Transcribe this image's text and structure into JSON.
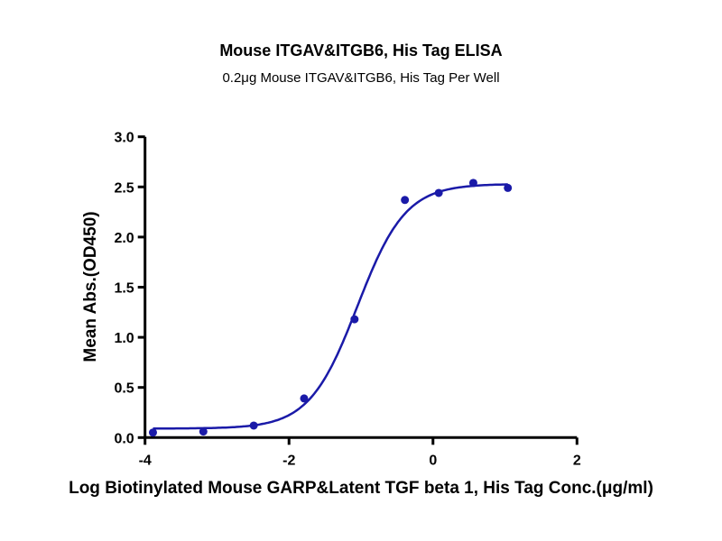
{
  "chart_data": {
    "type": "scatter",
    "title": "Mouse ITGAV&ITGB6, His Tag ELISA",
    "subtitle": "0.2μg Mouse ITGAV&ITGB6, His Tag Per Well",
    "xlabel": "Log Biotinylated Mouse GARP&Latent TGF beta 1, His Tag Conc.(μg/ml)",
    "ylabel": "Mean Abs.(OD450)",
    "xlim": [
      -4,
      2
    ],
    "ylim": [
      0,
      3.0
    ],
    "xticks": [
      "-4",
      "-2",
      "0",
      "2"
    ],
    "xtick_values": [
      -4,
      -2,
      0,
      2
    ],
    "yticks": [
      "0.0",
      "0.5",
      "1.0",
      "1.5",
      "2.0",
      "2.5",
      "3.0"
    ],
    "ytick_values": [
      0,
      0.5,
      1.0,
      1.5,
      2.0,
      2.5,
      3.0
    ],
    "grid": false,
    "color": "#1a1aa8",
    "points": {
      "x": [
        -3.89,
        -3.19,
        -2.49,
        -1.79,
        -1.09,
        -0.39,
        0.08,
        0.56,
        1.04
      ],
      "y": [
        0.05,
        0.06,
        0.12,
        0.39,
        1.18,
        2.37,
        2.44,
        2.54,
        2.49
      ]
    },
    "fit": {
      "model": "4PL",
      "bottom": 0.09,
      "top": 2.53,
      "logEC50": -1.05,
      "hill_slope": 1.3,
      "x_range": [
        -3.89,
        1.04
      ]
    }
  }
}
